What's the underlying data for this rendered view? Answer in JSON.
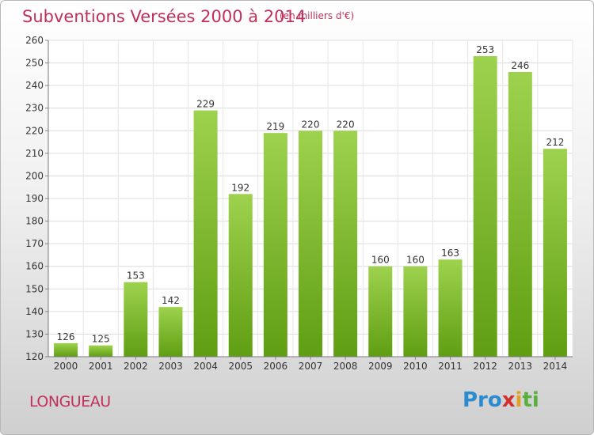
{
  "header": {
    "title": "Subventions Versées 2000 à 2014",
    "subtitle": "(en milliers d'€)"
  },
  "footer": {
    "place": "LONGUEAU",
    "logo_parts": [
      "Pro",
      "x",
      "i",
      "ti"
    ]
  },
  "colors": {
    "accent": "#c0305a",
    "bar_top": "#9ed24e",
    "bar_bottom": "#5f9e12"
  },
  "chart_data": {
    "type": "bar",
    "title": "Subventions Versées 2000 à 2014",
    "subtitle": "(en milliers d'€)",
    "categories": [
      "2000",
      "2001",
      "2002",
      "2003",
      "2004",
      "2005",
      "2006",
      "2007",
      "2008",
      "2009",
      "2010",
      "2011",
      "2012",
      "2013",
      "2014"
    ],
    "values": [
      126,
      125,
      153,
      142,
      229,
      192,
      219,
      220,
      220,
      160,
      160,
      163,
      253,
      246,
      212
    ],
    "ylim": [
      120,
      260
    ],
    "yticks": [
      120,
      130,
      140,
      150,
      160,
      170,
      180,
      190,
      200,
      210,
      220,
      230,
      240,
      250,
      260
    ],
    "grid": true,
    "data_labels": true
  }
}
